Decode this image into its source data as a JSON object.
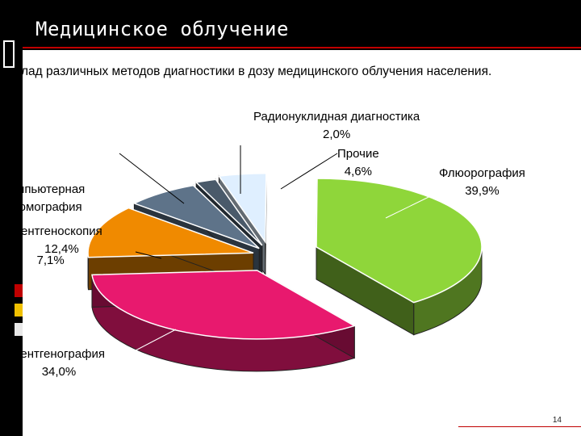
{
  "slide": {
    "title": "Медицинское облучение",
    "subtitle": "лад различных методов диагностики в дозу медицинского облучения населения.",
    "page_number": "14"
  },
  "colors": {
    "accent_red": "#c00000",
    "flyuoro": "#8fd63a",
    "rentgenografiya": "#e8196e",
    "rentgenoskopiya": "#f08a00",
    "kt": "#5e7389",
    "radionuklid": "#4a5a6a",
    "prochie": "#dfefff"
  },
  "chart_data": {
    "type": "pie",
    "title": "",
    "series": [
      {
        "values": [
          39.9,
          34.0,
          12.4,
          7.1,
          2.0,
          4.6
        ],
        "colors": [
          "#8fd63a",
          "#e8196e",
          "#f08a00",
          "#5e7389",
          "#4a5a6a",
          "#dfefff"
        ]
      }
    ],
    "labels": [
      {
        "name": "Флюорография",
        "pct": "39,9%"
      },
      {
        "name": "Рентгенография",
        "pct": "34,0%"
      },
      {
        "name": "ентгеноскопия",
        "pct": "12,4%"
      },
      {
        "name": "мпьютерная\nомография",
        "pct": "7,1%"
      },
      {
        "name": "Радионуклидная диагностика",
        "pct": "2,0%"
      },
      {
        "name": "Прочие",
        "pct": "4,6%"
      }
    ],
    "style": "exploded 3d pie"
  }
}
